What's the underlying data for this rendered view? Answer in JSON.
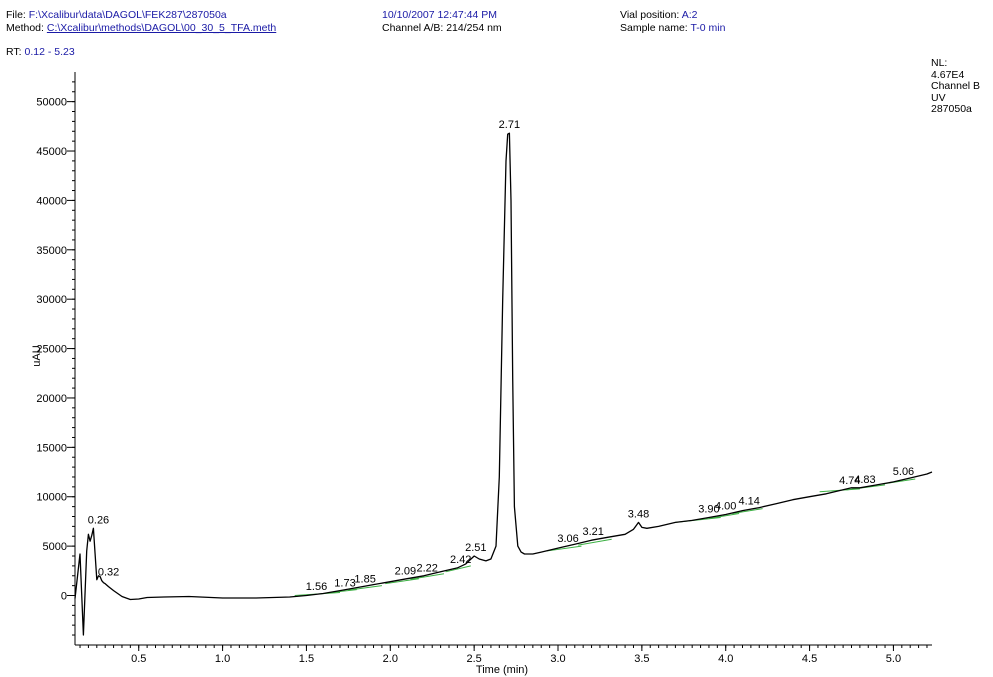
{
  "header": {
    "file_label": "File:",
    "file_value": "F:\\Xcalibur\\data\\DAGOL\\FEK287\\287050a",
    "method_label": "Method:",
    "method_value": "C:\\Xcalibur\\methods\\DAGOL\\00_30_5_TFA.meth",
    "datetime": "10/10/2007 12:47:44 PM",
    "channel_label": "Channel A/B:",
    "channel_value": "214/254 nm",
    "vial_label": "Vial position:",
    "vial_value": "A:2",
    "sample_label": "Sample name:",
    "sample_value": "T-0 min",
    "rt_label": "RT:",
    "rt_value": "0.12 - 5.23"
  },
  "info": {
    "nl_label": "NL:",
    "nl_value": "4.67E4",
    "channel": "Channel B",
    "detector": "UV",
    "file": "287050a"
  },
  "colors": {
    "trace": "#000000",
    "baseline": "#3cb043",
    "header_value": "#1a1aa6"
  },
  "chart_data": {
    "type": "line",
    "xlabel": "Time (min)",
    "ylabel": "uAU",
    "xlim": [
      0.12,
      5.23
    ],
    "ylim": [
      -4200,
      53000
    ],
    "x_ticks": [
      0.5,
      1.0,
      1.5,
      2.0,
      2.5,
      3.0,
      3.5,
      4.0,
      4.5,
      5.0
    ],
    "x_tick_labels": [
      "0.5",
      "1.0",
      "1.5",
      "2.0",
      "2.5",
      "3.0",
      "3.5",
      "4.0",
      "4.5",
      "5.0"
    ],
    "y_ticks": [
      0,
      5000,
      10000,
      15000,
      20000,
      25000,
      30000,
      35000,
      40000,
      45000,
      50000
    ],
    "y_tick_labels": [
      "0",
      "5000",
      "10000",
      "15000",
      "20000",
      "25000",
      "30000",
      "35000",
      "40000",
      "45000",
      "50000"
    ],
    "series": [
      {
        "x": [
          0.12,
          0.15,
          0.17,
          0.19,
          0.2,
          0.21,
          0.22,
          0.23,
          0.24,
          0.25,
          0.26,
          0.27,
          0.28,
          0.29,
          0.3,
          0.32,
          0.35,
          0.4,
          0.45,
          0.5,
          0.55,
          0.65,
          0.8,
          1.0,
          1.2,
          1.4,
          1.5,
          1.6,
          1.7,
          1.8,
          1.9,
          2.0,
          2.1,
          2.2,
          2.3,
          2.4,
          2.45,
          2.5,
          2.53,
          2.57,
          2.6,
          2.63,
          2.65,
          2.67,
          2.69,
          2.7,
          2.71,
          2.72,
          2.73,
          2.74,
          2.76,
          2.78,
          2.8,
          2.85,
          2.9,
          3.0,
          3.1,
          3.2,
          3.3,
          3.4,
          3.45,
          3.48,
          3.5,
          3.53,
          3.6,
          3.7,
          3.8,
          3.9,
          4.0,
          4.1,
          4.2,
          4.3,
          4.4,
          4.5,
          4.6,
          4.7,
          4.75,
          4.8,
          4.9,
          5.0,
          5.1,
          5.2,
          5.23
        ],
        "y": [
          -300,
          4200,
          -4000,
          4500,
          6200,
          5500,
          6100,
          6800,
          4200,
          1600,
          2000,
          1900,
          1500,
          1300,
          1200,
          900,
          500,
          -100,
          -400,
          -350,
          -200,
          -150,
          -100,
          -250,
          -250,
          -150,
          0,
          200,
          500,
          800,
          1100,
          1400,
          1700,
          2000,
          2400,
          2800,
          3200,
          4000,
          3700,
          3500,
          3700,
          5000,
          12000,
          30000,
          44000,
          46700,
          46800,
          40000,
          22000,
          9000,
          5000,
          4400,
          4200,
          4200,
          4400,
          4800,
          5200,
          5600,
          5900,
          6200,
          6700,
          7400,
          6900,
          6800,
          7000,
          7400,
          7600,
          7900,
          8200,
          8600,
          8900,
          9300,
          9700,
          10000,
          10300,
          10700,
          10900,
          10900,
          11200,
          11500,
          11900,
          12300,
          12500
        ]
      }
    ],
    "peak_labels": [
      {
        "x": 0.26,
        "y": 6800,
        "label": "0.26"
      },
      {
        "x": 0.32,
        "y": 1500,
        "label": "0.32"
      },
      {
        "x": 1.56,
        "y": 50,
        "label": "1.56"
      },
      {
        "x": 1.73,
        "y": 400,
        "label": "1.73"
      },
      {
        "x": 1.85,
        "y": 800,
        "label": "1.85"
      },
      {
        "x": 2.09,
        "y": 1600,
        "label": "2.09"
      },
      {
        "x": 2.22,
        "y": 1950,
        "label": "2.22"
      },
      {
        "x": 2.42,
        "y": 2800,
        "label": "2.42"
      },
      {
        "x": 2.51,
        "y": 4000,
        "label": "2.51"
      },
      {
        "x": 2.71,
        "y": 46800,
        "label": "2.71"
      },
      {
        "x": 3.06,
        "y": 4900,
        "label": "3.06"
      },
      {
        "x": 3.21,
        "y": 5600,
        "label": "3.21"
      },
      {
        "x": 3.48,
        "y": 7400,
        "label": "3.48"
      },
      {
        "x": 3.9,
        "y": 7900,
        "label": "3.90"
      },
      {
        "x": 4.0,
        "y": 8200,
        "label": "4.00"
      },
      {
        "x": 4.14,
        "y": 8700,
        "label": "4.14"
      },
      {
        "x": 4.74,
        "y": 10800,
        "label": "4.74"
      },
      {
        "x": 4.83,
        "y": 10900,
        "label": "4.83"
      },
      {
        "x": 5.06,
        "y": 11700,
        "label": "5.06"
      }
    ],
    "baselines": [
      {
        "x1": 1.43,
        "y1": 0,
        "x2": 1.7,
        "y2": 300
      },
      {
        "x1": 1.62,
        "y1": 250,
        "x2": 1.8,
        "y2": 600
      },
      {
        "x1": 1.75,
        "y1": 550,
        "x2": 1.95,
        "y2": 1000
      },
      {
        "x1": 1.97,
        "y1": 1200,
        "x2": 2.17,
        "y2": 1700
      },
      {
        "x1": 2.12,
        "y1": 1650,
        "x2": 2.32,
        "y2": 2200
      },
      {
        "x1": 2.33,
        "y1": 2400,
        "x2": 2.48,
        "y2": 3000
      },
      {
        "x1": 2.93,
        "y1": 4500,
        "x2": 3.14,
        "y2": 5000
      },
      {
        "x1": 3.12,
        "y1": 5100,
        "x2": 3.32,
        "y2": 5700
      },
      {
        "x1": 3.7,
        "y1": 7400,
        "x2": 3.97,
        "y2": 7900
      },
      {
        "x1": 3.9,
        "y1": 7800,
        "x2": 4.08,
        "y2": 8300
      },
      {
        "x1": 4.04,
        "y1": 8300,
        "x2": 4.22,
        "y2": 8800
      },
      {
        "x1": 4.56,
        "y1": 10500,
        "x2": 4.8,
        "y2": 10800
      },
      {
        "x1": 4.72,
        "y1": 10700,
        "x2": 4.95,
        "y2": 11200
      },
      {
        "x1": 4.94,
        "y1": 11300,
        "x2": 5.13,
        "y2": 11800
      }
    ]
  }
}
